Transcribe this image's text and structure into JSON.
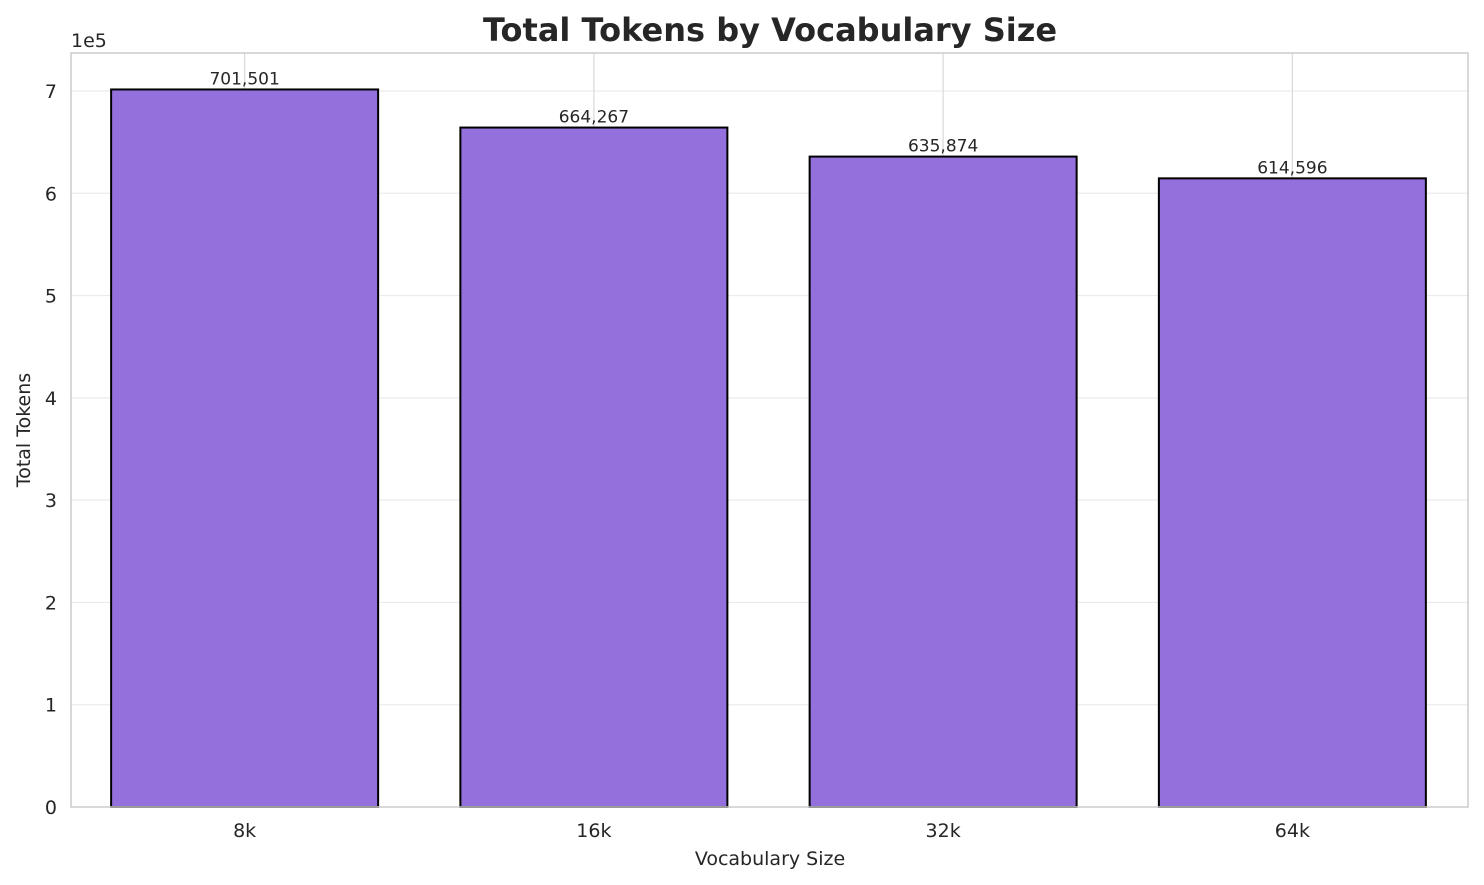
{
  "chart_data": {
    "type": "bar",
    "title": "Total Tokens by Vocabulary Size",
    "xlabel": "Vocabulary Size",
    "ylabel": "Total Tokens",
    "y_offset_label": "1e5",
    "categories": [
      "8k",
      "16k",
      "32k",
      "64k"
    ],
    "values": [
      701501,
      664267,
      635874,
      614596
    ],
    "value_labels": [
      "701,501",
      "664,267",
      "635,874",
      "614,596"
    ],
    "yticks": [
      0,
      1,
      2,
      3,
      4,
      5,
      6,
      7
    ],
    "ytick_labels": [
      "0",
      "1",
      "2",
      "3",
      "4",
      "5",
      "6",
      "7"
    ],
    "ylim": [
      0,
      736576
    ],
    "grid": true,
    "legend": null,
    "colors": {
      "bar": "#9370DB",
      "bar_edge": "#000000",
      "grid": "#ebebeb",
      "spine": "#cccccc"
    }
  }
}
